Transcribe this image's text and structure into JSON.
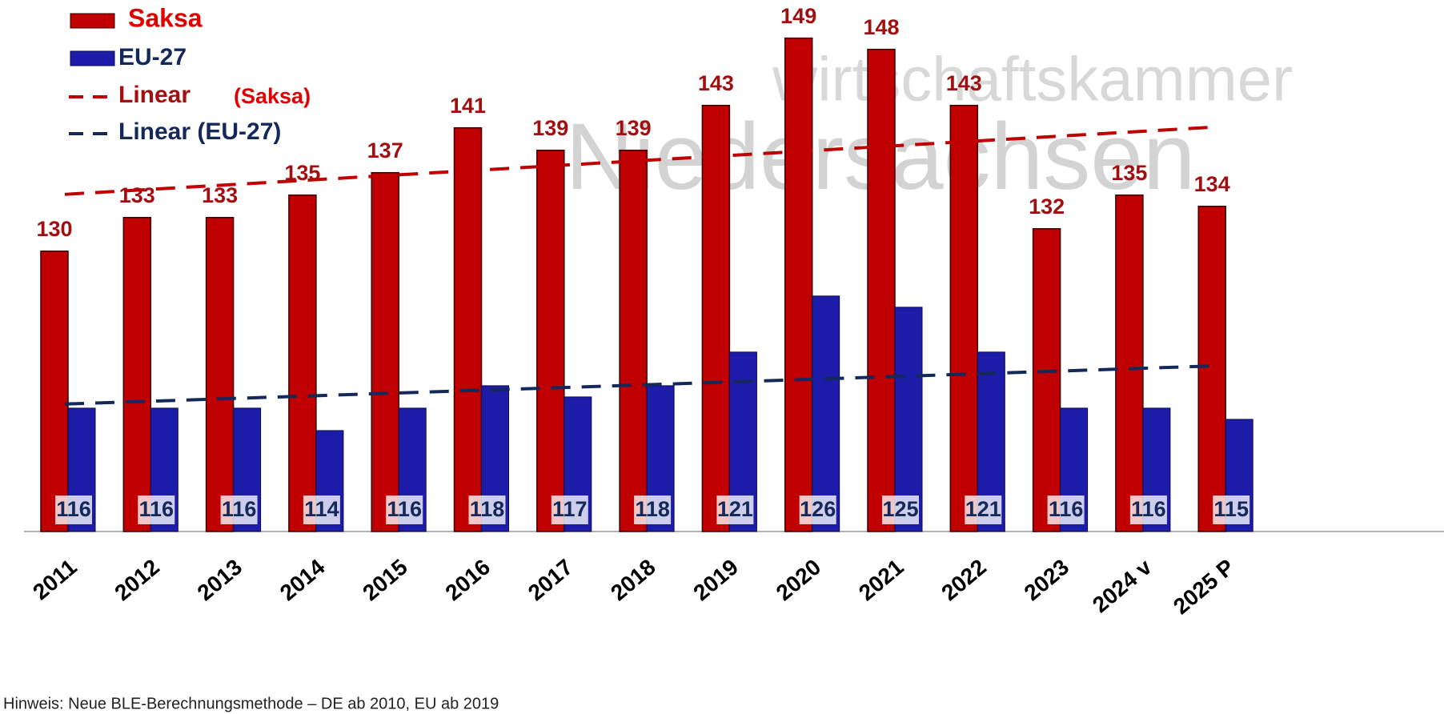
{
  "chart_data": {
    "type": "bar",
    "categories": [
      "2011",
      "2012",
      "2013",
      "2014",
      "2015",
      "2016",
      "2017",
      "2018",
      "2019",
      "2020",
      "2021",
      "2022",
      "2023",
      "2024 v",
      "2025 P"
    ],
    "series": [
      {
        "name": "Saksa",
        "color": "#c00000",
        "values": [
          130,
          133,
          133,
          135,
          137,
          141,
          139,
          139,
          143,
          149,
          148,
          143,
          132,
          135,
          134
        ]
      },
      {
        "name": "EU-27",
        "color": "#1c1ca8",
        "values": [
          116,
          116,
          116,
          114,
          116,
          118,
          117,
          118,
          121,
          126,
          125,
          121,
          116,
          116,
          115
        ]
      }
    ],
    "trend_colors": [
      "#c00000",
      "#14285a"
    ],
    "trend_legend": [
      "Linear",
      "(Saksa)",
      "Linear (EU-27)"
    ],
    "ylim": [
      105,
      152.4
    ],
    "watermark": [
      "wirtschaftskammer",
      "Niedersachsen"
    ],
    "footnote": "Hinweis: Neue BLE-Berechnungsmethode – DE ab 2010, EU ab 2019"
  }
}
